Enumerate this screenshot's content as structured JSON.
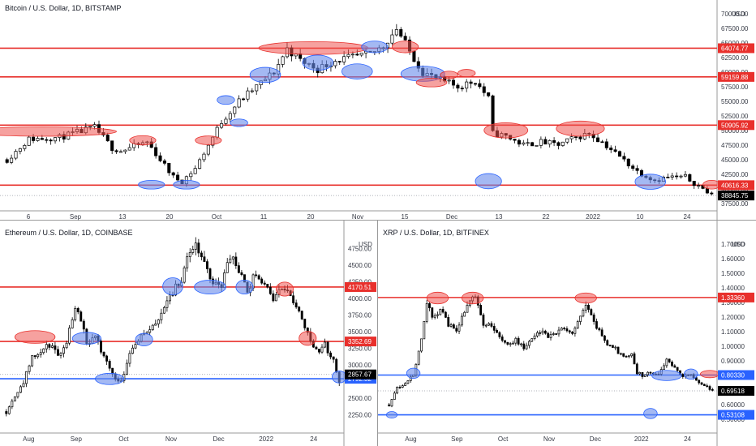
{
  "colors": {
    "resistance": "#e8302c",
    "support": "#2962ff",
    "resistance_zone": "rgba(239,83,80,0.55)",
    "support_zone": "rgba(103,139,235,0.6)",
    "candle_up": "#ffffff",
    "candle_down": "#000000",
    "last_price": "#000000"
  },
  "chart_data": [
    {
      "id": "btc",
      "type": "candlestick",
      "title": "Bitcoin / U.S. Dollar, 1D, BITSTAMP",
      "y_unit": "USD",
      "ylim": [
        36500,
        71500
      ],
      "yticks": [
        "70000.00",
        "67500.00",
        "65000.00",
        "62500.00",
        "60000.00",
        "57500.00",
        "55000.00",
        "52500.00",
        "50000.00",
        "47500.00",
        "45000.00",
        "42500.00",
        "40000.00",
        "37500.00"
      ],
      "xticks": [
        "6",
        "Sep",
        "13",
        "20",
        "Oct",
        "11",
        "20",
        "Nov",
        "15",
        "Dec",
        "13",
        "22",
        "2022",
        "10",
        "24"
      ],
      "levels": [
        {
          "value": 64074.77,
          "label": "64074.77",
          "kind": "resistance"
        },
        {
          "value": 59159.88,
          "label": "59159.88",
          "kind": "resistance"
        },
        {
          "value": 50905.92,
          "label": "50905.92",
          "kind": "resistance"
        },
        {
          "value": 40616.33,
          "label": "40616.33",
          "kind": "resistance"
        }
      ],
      "last_price": {
        "value": 38845.75,
        "label": "38845.75"
      },
      "anchors": [
        [
          0,
          45000
        ],
        [
          5,
          48500
        ],
        [
          12,
          48800
        ],
        [
          20,
          50500
        ],
        [
          24,
          47000
        ],
        [
          26,
          46500
        ],
        [
          32,
          48000
        ],
        [
          35,
          45000
        ],
        [
          38,
          42000
        ],
        [
          40,
          41300
        ],
        [
          43,
          43500
        ],
        [
          46,
          47500
        ],
        [
          49,
          51500
        ],
        [
          53,
          55000
        ],
        [
          57,
          57500
        ],
        [
          61,
          60000
        ],
        [
          64,
          64000
        ],
        [
          67,
          62000
        ],
        [
          71,
          60500
        ],
        [
          75,
          62000
        ],
        [
          79,
          62500
        ],
        [
          83,
          63000
        ],
        [
          86,
          64500
        ],
        [
          89,
          67500
        ],
        [
          92,
          63500
        ],
        [
          95,
          60000
        ],
        [
          99,
          58500
        ],
        [
          103,
          57500
        ],
        [
          107,
          58500
        ],
        [
          110,
          55500
        ],
        [
          111,
          49500
        ],
        [
          114,
          49000
        ],
        [
          118,
          47500
        ],
        [
          122,
          48000
        ],
        [
          126,
          47500
        ],
        [
          129,
          48500
        ],
        [
          133,
          49500
        ],
        [
          136,
          48000
        ],
        [
          140,
          45500
        ],
        [
          144,
          43000
        ],
        [
          148,
          41500
        ],
        [
          151,
          42000
        ],
        [
          155,
          42000
        ],
        [
          159,
          40000
        ],
        [
          161,
          38800
        ]
      ],
      "zones": [
        {
          "i": 8,
          "value": 49800,
          "w": 17,
          "h": 1600,
          "kind": "resistance"
        },
        {
          "i": 31,
          "value": 48300,
          "w": 3,
          "h": 1600,
          "kind": "resistance"
        },
        {
          "i": 33,
          "value": 40700,
          "w": 3,
          "h": 1500,
          "kind": "support"
        },
        {
          "i": 41,
          "value": 40700,
          "w": 3,
          "h": 1500,
          "kind": "support"
        },
        {
          "i": 46,
          "value": 48300,
          "w": 3,
          "h": 1500,
          "kind": "resistance"
        },
        {
          "i": 50,
          "value": 55200,
          "w": 2,
          "h": 1500,
          "kind": "support"
        },
        {
          "i": 53,
          "value": 51300,
          "w": 2,
          "h": 1300,
          "kind": "support"
        },
        {
          "i": 59,
          "value": 59500,
          "w": 3.5,
          "h": 2600,
          "kind": "support"
        },
        {
          "i": 70,
          "value": 64100,
          "w": 12.5,
          "h": 2200,
          "kind": "resistance"
        },
        {
          "i": 71,
          "value": 61600,
          "w": 3.5,
          "h": 2600,
          "kind": "support"
        },
        {
          "i": 80,
          "value": 60100,
          "w": 3.5,
          "h": 2600,
          "kind": "support"
        },
        {
          "i": 84,
          "value": 64300,
          "w": 3,
          "h": 2000,
          "kind": "support"
        },
        {
          "i": 91,
          "value": 64300,
          "w": 3,
          "h": 2000,
          "kind": "resistance"
        },
        {
          "i": 95,
          "value": 59700,
          "w": 5,
          "h": 2600,
          "kind": "support"
        },
        {
          "i": 97,
          "value": 58200,
          "w": 3.5,
          "h": 1500,
          "kind": "resistance"
        },
        {
          "i": 101,
          "value": 59500,
          "w": 2,
          "h": 1300,
          "kind": "resistance"
        },
        {
          "i": 105,
          "value": 59800,
          "w": 2,
          "h": 1300,
          "kind": "resistance"
        },
        {
          "i": 110,
          "value": 41300,
          "w": 3,
          "h": 2600,
          "kind": "support"
        },
        {
          "i": 114,
          "value": 50000,
          "w": 5,
          "h": 2600,
          "kind": "resistance"
        },
        {
          "i": 131,
          "value": 50300,
          "w": 5.5,
          "h": 2600,
          "kind": "resistance"
        },
        {
          "i": 147,
          "value": 41200,
          "w": 3.5,
          "h": 2600,
          "kind": "support"
        },
        {
          "i": 161,
          "value": 40700,
          "w": 2,
          "h": 1500,
          "kind": "resistance"
        }
      ]
    },
    {
      "id": "eth",
      "type": "candlestick",
      "title": "Ethereum / U.S. Dollar, 1D, COINBASE",
      "y_unit": "USD",
      "ylim": [
        2050,
        4950
      ],
      "yticks": [
        "4750.00",
        "4500.00",
        "4250.00",
        "4000.00",
        "3750.00",
        "3500.00",
        "3250.00",
        "3000.00",
        "2500.00",
        "2250.00"
      ],
      "xticks": [
        "Aug",
        "Sep",
        "Oct",
        "Nov",
        "Dec",
        "2022",
        "24"
      ],
      "levels": [
        {
          "value": 4170.51,
          "label": "4170.51",
          "kind": "resistance"
        },
        {
          "value": 3352.69,
          "label": "3352.69",
          "kind": "resistance"
        },
        {
          "value": 2792.32,
          "label": "2792.32",
          "kind": "support"
        }
      ],
      "last_price": {
        "value": 2857.67,
        "label": "2857.67"
      },
      "anchors": [
        [
          0,
          2300
        ],
        [
          3,
          2550
        ],
        [
          6,
          2750
        ],
        [
          9,
          3100
        ],
        [
          12,
          3200
        ],
        [
          15,
          3300
        ],
        [
          18,
          3150
        ],
        [
          21,
          3350
        ],
        [
          24,
          3900
        ],
        [
          26,
          3700
        ],
        [
          28,
          3350
        ],
        [
          31,
          3400
        ],
        [
          34,
          3150
        ],
        [
          37,
          2850
        ],
        [
          40,
          2750
        ],
        [
          43,
          3200
        ],
        [
          46,
          3400
        ],
        [
          49,
          3500
        ],
        [
          52,
          3600
        ],
        [
          55,
          3900
        ],
        [
          58,
          4100
        ],
        [
          61,
          4300
        ],
        [
          64,
          4700
        ],
        [
          66,
          4800
        ],
        [
          69,
          4500
        ],
        [
          72,
          4250
        ],
        [
          75,
          4200
        ],
        [
          78,
          4650
        ],
        [
          81,
          4400
        ],
        [
          84,
          4100
        ],
        [
          87,
          4400
        ],
        [
          90,
          4200
        ],
        [
          93,
          4000
        ],
        [
          96,
          4150
        ],
        [
          99,
          4050
        ],
        [
          102,
          3800
        ],
        [
          105,
          3500
        ],
        [
          108,
          3200
        ],
        [
          111,
          3300
        ],
        [
          114,
          3050
        ],
        [
          116,
          2750
        ]
      ],
      "zones": [
        {
          "i": 10,
          "value": 3420,
          "w": 7,
          "h": 190,
          "kind": "resistance"
        },
        {
          "i": 28,
          "value": 3400,
          "w": 5,
          "h": 180,
          "kind": "support"
        },
        {
          "i": 36,
          "value": 2790,
          "w": 5,
          "h": 170,
          "kind": "support"
        },
        {
          "i": 48,
          "value": 3380,
          "w": 3,
          "h": 190,
          "kind": "support"
        },
        {
          "i": 58,
          "value": 4180,
          "w": 3.5,
          "h": 260,
          "kind": "support"
        },
        {
          "i": 71,
          "value": 4170,
          "w": 5.5,
          "h": 210,
          "kind": "support"
        },
        {
          "i": 83,
          "value": 4170,
          "w": 3,
          "h": 210,
          "kind": "support"
        },
        {
          "i": 97,
          "value": 4140,
          "w": 3,
          "h": 210,
          "kind": "resistance"
        },
        {
          "i": 105,
          "value": 3400,
          "w": 3,
          "h": 210,
          "kind": "resistance"
        },
        {
          "i": 116,
          "value": 2820,
          "w": 2.5,
          "h": 180,
          "kind": "support"
        }
      ]
    },
    {
      "id": "xrp",
      "type": "candlestick",
      "title": "XRP / U.S. Dollar, 1D, BITFINEX",
      "y_unit": "USD",
      "ylim": [
        0.44,
        1.76
      ],
      "yticks": [
        "1.70000",
        "1.60000",
        "1.50000",
        "1.40000",
        "1.30000",
        "1.20000",
        "1.10000",
        "1.00000",
        "0.90000",
        "0.70000",
        "0.60000",
        "0.50000"
      ],
      "xticks": [
        "Aug",
        "Sep",
        "Oct",
        "Nov",
        "Dec",
        "2022",
        "24"
      ],
      "levels": [
        {
          "value": 1.3336,
          "label": "1.33360",
          "kind": "resistance"
        },
        {
          "value": 0.8033,
          "label": "0.80330",
          "kind": "support"
        },
        {
          "value": 0.53108,
          "label": "0.53108",
          "kind": "support"
        }
      ],
      "last_price": {
        "value": 0.69518,
        "label": "0.69518"
      },
      "anchors": [
        [
          0,
          0.6
        ],
        [
          3,
          0.72
        ],
        [
          6,
          0.75
        ],
        [
          9,
          0.8
        ],
        [
          12,
          1.05
        ],
        [
          14,
          1.3
        ],
        [
          16,
          1.2
        ],
        [
          19,
          1.25
        ],
        [
          22,
          1.15
        ],
        [
          25,
          1.1
        ],
        [
          28,
          1.25
        ],
        [
          31,
          1.35
        ],
        [
          33,
          1.3
        ],
        [
          35,
          1.15
        ],
        [
          38,
          1.15
        ],
        [
          41,
          1.05
        ],
        [
          44,
          1.0
        ],
        [
          47,
          1.05
        ],
        [
          50,
          0.98
        ],
        [
          53,
          1.05
        ],
        [
          56,
          1.1
        ],
        [
          59,
          1.07
        ],
        [
          62,
          1.1
        ],
        [
          65,
          1.12
        ],
        [
          68,
          1.1
        ],
        [
          71,
          1.2
        ],
        [
          73,
          1.3
        ],
        [
          75,
          1.2
        ],
        [
          78,
          1.1
        ],
        [
          81,
          1.0
        ],
        [
          84,
          0.98
        ],
        [
          87,
          0.92
        ],
        [
          90,
          0.95
        ],
        [
          92,
          0.82
        ],
        [
          94,
          0.8
        ],
        [
          97,
          0.82
        ],
        [
          100,
          0.8
        ],
        [
          103,
          0.92
        ],
        [
          106,
          0.85
        ],
        [
          109,
          0.8
        ],
        [
          112,
          0.8
        ],
        [
          115,
          0.76
        ],
        [
          118,
          0.73
        ],
        [
          120,
          0.69
        ]
      ],
      "zones": [
        {
          "i": 1,
          "value": 0.531,
          "w": 2,
          "h": 0.045,
          "kind": "support"
        },
        {
          "i": 9,
          "value": 0.815,
          "w": 2.5,
          "h": 0.07,
          "kind": "support"
        },
        {
          "i": 18,
          "value": 1.33,
          "w": 4,
          "h": 0.08,
          "kind": "resistance"
        },
        {
          "i": 31,
          "value": 1.33,
          "w": 4,
          "h": 0.08,
          "kind": "resistance"
        },
        {
          "i": 73,
          "value": 1.33,
          "w": 4,
          "h": 0.07,
          "kind": "resistance"
        },
        {
          "i": 97,
          "value": 0.54,
          "w": 2.5,
          "h": 0.07,
          "kind": "support"
        },
        {
          "i": 103,
          "value": 0.8,
          "w": 5.5,
          "h": 0.07,
          "kind": "support"
        },
        {
          "i": 112,
          "value": 0.81,
          "w": 2.5,
          "h": 0.07,
          "kind": "support"
        },
        {
          "i": 119,
          "value": 0.81,
          "w": 3.5,
          "h": 0.05,
          "kind": "resistance"
        }
      ]
    }
  ]
}
